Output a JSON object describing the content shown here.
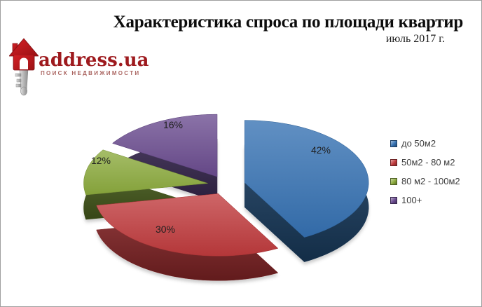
{
  "frame": {
    "bg": "#ffffff",
    "border_color": "#9e9e9e"
  },
  "header": {
    "title": "Характеристика спроса по площади квартир",
    "subtitle": "июль 2017 г."
  },
  "logo": {
    "name": "address.ua",
    "tagline": "поиск недвижимости",
    "brand_color": "#9e1a1e"
  },
  "chart_data": {
    "type": "pie",
    "title": "Характеристика спроса по площади квартир",
    "subtitle": "июль 2017 г.",
    "labels": [
      "до 50м2",
      "50м2 - 80 м2",
      "80 м2 - 100м2",
      "100+"
    ],
    "values": [
      42,
      30,
      12,
      16
    ],
    "data_labels": [
      "42%",
      "30%",
      "12%",
      "16%"
    ],
    "colors": [
      "#3571b2",
      "#c03b3d",
      "#8cab3e",
      "#6a4b8f"
    ],
    "side_colors": [
      "#1b3f63",
      "#882527",
      "#4b611e",
      "#3c2b55"
    ],
    "start_angle_deg": 0,
    "direction": "clockwise",
    "style": "3d-exploded",
    "legend_position": "right",
    "grid": false
  }
}
